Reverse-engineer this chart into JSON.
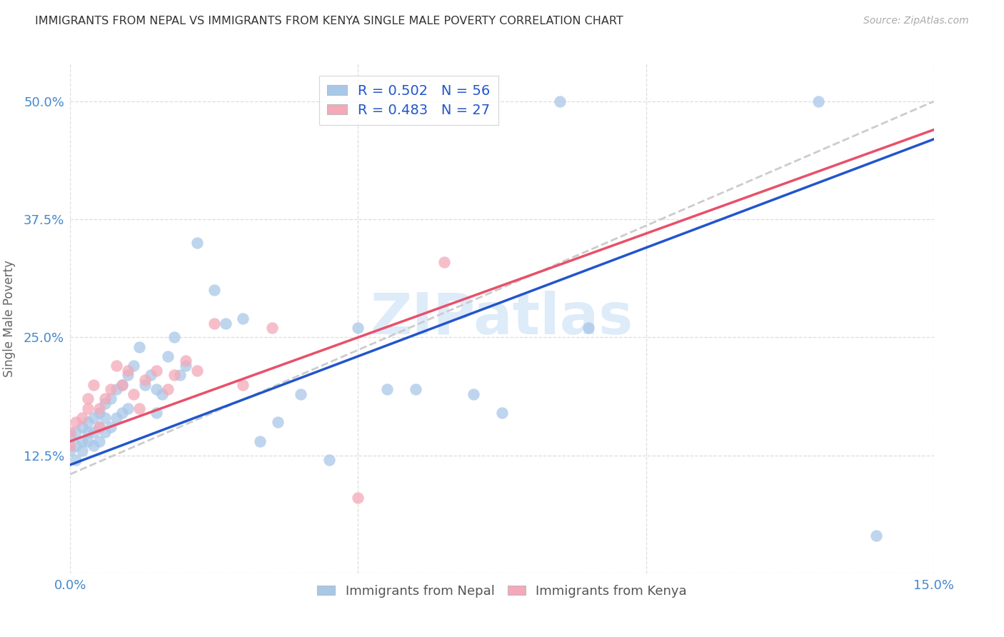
{
  "title": "IMMIGRANTS FROM NEPAL VS IMMIGRANTS FROM KENYA SINGLE MALE POVERTY CORRELATION CHART",
  "source": "Source: ZipAtlas.com",
  "ylabel_label": "Single Male Poverty",
  "xlim": [
    0.0,
    0.15
  ],
  "ylim": [
    0.0,
    0.54
  ],
  "x_ticks": [
    0.0,
    0.05,
    0.1,
    0.15
  ],
  "x_tick_labels": [
    "0.0%",
    "",
    "",
    "15.0%"
  ],
  "y_ticks": [
    0.0,
    0.125,
    0.25,
    0.375,
    0.5
  ],
  "y_tick_labels": [
    "",
    "12.5%",
    "25.0%",
    "37.5%",
    "50.0%"
  ],
  "nepal_color": "#a8c8e8",
  "kenya_color": "#f4a8b8",
  "nepal_line_color": "#2255cc",
  "kenya_line_color": "#e8506a",
  "nepal_R": 0.502,
  "nepal_N": 56,
  "kenya_R": 0.483,
  "kenya_N": 27,
  "nepal_scatter": {
    "x": [
      0.0,
      0.0,
      0.001,
      0.001,
      0.001,
      0.002,
      0.002,
      0.002,
      0.003,
      0.003,
      0.003,
      0.004,
      0.004,
      0.004,
      0.005,
      0.005,
      0.005,
      0.006,
      0.006,
      0.006,
      0.007,
      0.007,
      0.008,
      0.008,
      0.009,
      0.009,
      0.01,
      0.01,
      0.011,
      0.012,
      0.013,
      0.014,
      0.015,
      0.015,
      0.016,
      0.017,
      0.018,
      0.019,
      0.02,
      0.022,
      0.025,
      0.027,
      0.03,
      0.033,
      0.036,
      0.04,
      0.045,
      0.05,
      0.055,
      0.06,
      0.07,
      0.075,
      0.085,
      0.09,
      0.13,
      0.14
    ],
    "y": [
      0.13,
      0.145,
      0.12,
      0.135,
      0.15,
      0.13,
      0.14,
      0.155,
      0.14,
      0.15,
      0.16,
      0.135,
      0.15,
      0.165,
      0.14,
      0.155,
      0.17,
      0.15,
      0.165,
      0.18,
      0.155,
      0.185,
      0.165,
      0.195,
      0.17,
      0.2,
      0.175,
      0.21,
      0.22,
      0.24,
      0.2,
      0.21,
      0.17,
      0.195,
      0.19,
      0.23,
      0.25,
      0.21,
      0.22,
      0.35,
      0.3,
      0.265,
      0.27,
      0.14,
      0.16,
      0.19,
      0.12,
      0.26,
      0.195,
      0.195,
      0.19,
      0.17,
      0.5,
      0.26,
      0.5,
      0.04
    ]
  },
  "kenya_scatter": {
    "x": [
      0.0,
      0.0,
      0.001,
      0.002,
      0.003,
      0.003,
      0.004,
      0.005,
      0.005,
      0.006,
      0.007,
      0.008,
      0.009,
      0.01,
      0.011,
      0.012,
      0.013,
      0.015,
      0.017,
      0.018,
      0.02,
      0.022,
      0.025,
      0.03,
      0.035,
      0.065,
      0.05
    ],
    "y": [
      0.135,
      0.15,
      0.16,
      0.165,
      0.175,
      0.185,
      0.2,
      0.155,
      0.175,
      0.185,
      0.195,
      0.22,
      0.2,
      0.215,
      0.19,
      0.175,
      0.205,
      0.215,
      0.195,
      0.21,
      0.225,
      0.215,
      0.265,
      0.2,
      0.26,
      0.33,
      0.08
    ]
  },
  "nepal_line": {
    "x0": 0.0,
    "y0": 0.115,
    "x1": 0.15,
    "y1": 0.46
  },
  "kenya_line": {
    "x0": 0.0,
    "y0": 0.14,
    "x1": 0.15,
    "y1": 0.47
  },
  "ref_line": {
    "x0": 0.0,
    "y0": 0.105,
    "x1": 0.15,
    "y1": 0.5
  },
  "background_color": "#ffffff",
  "grid_color": "#dddddd",
  "title_color": "#333333",
  "tick_color": "#4488cc",
  "watermark_color": "#c8dff5",
  "source_color": "#aaaaaa"
}
